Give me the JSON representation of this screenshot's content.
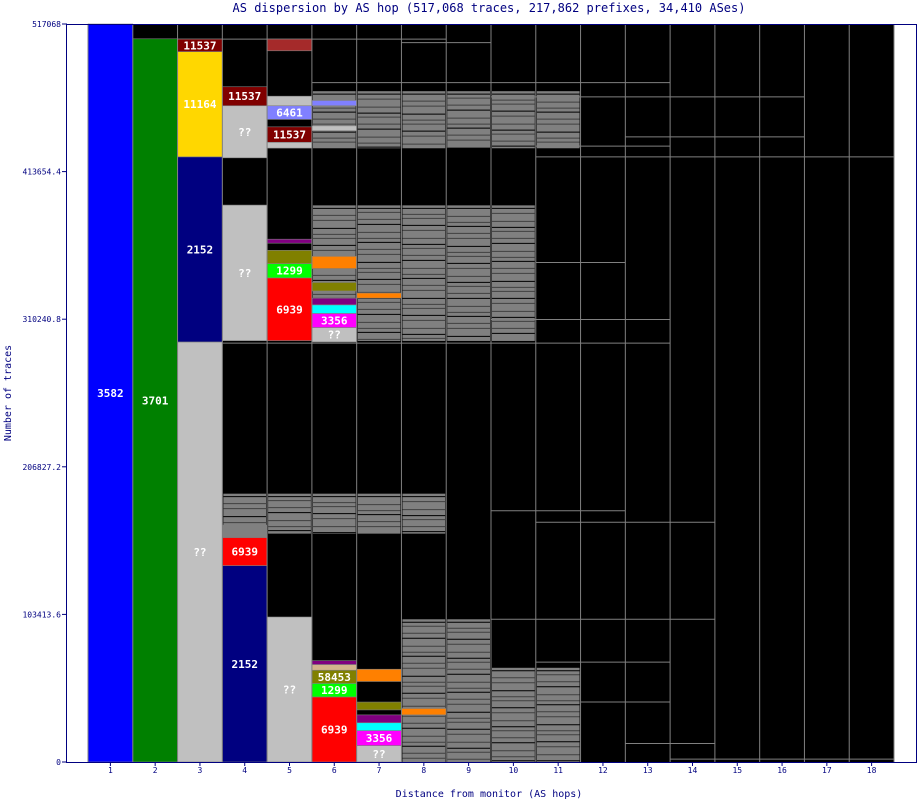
{
  "chart_data": {
    "type": "bar",
    "title": "AS dispersion by AS hop (517,068 traces, 217,862 prefixes, 34,410 ASes)",
    "xlabel": "Distance from monitor (AS hops)",
    "ylabel": "Number of traces",
    "ylim": [
      0,
      517068
    ],
    "yticks": [
      "0",
      "103413.6",
      "206827.2",
      "310240.8",
      "413654.4",
      "517068"
    ],
    "ytick_values": [
      0,
      103413.6,
      206827.2,
      310240.8,
      413654.4,
      517068
    ],
    "categories": [
      "1",
      "2",
      "3",
      "4",
      "5",
      "6",
      "7",
      "8",
      "9",
      "10",
      "11",
      "12",
      "13",
      "14",
      "15",
      "16",
      "17",
      "18"
    ],
    "background_color": "#000000",
    "segments": [
      {
        "hop": 1,
        "from": 0,
        "to": 517068,
        "color": "#0000ff",
        "label": "3582"
      },
      {
        "hop": 2,
        "from": 0,
        "to": 506700,
        "color": "#008000",
        "label": "3701"
      },
      {
        "hop": 3,
        "from": 0,
        "to": 294300,
        "color": "#c0c0c0",
        "label": "??"
      },
      {
        "hop": 3,
        "from": 294300,
        "to": 424000,
        "color": "#000080",
        "label": "2152"
      },
      {
        "hop": 3,
        "from": 424000,
        "to": 497700,
        "color": "#ffd700",
        "label": "11164"
      },
      {
        "hop": 3,
        "from": 497700,
        "to": 506500,
        "color": "#800000",
        "label": "11537"
      },
      {
        "hop": 4,
        "from": 0,
        "to": 137600,
        "color": "#000080",
        "label": "2152"
      },
      {
        "hop": 4,
        "from": 137600,
        "to": 157300,
        "color": "#ff0000",
        "label": "6939"
      },
      {
        "hop": 4,
        "from": 157300,
        "to": 166000,
        "color": "#808080",
        "label": ""
      },
      {
        "hop": 4,
        "from": 295200,
        "to": 390200,
        "color": "#c0c0c0",
        "label": "??"
      },
      {
        "hop": 4,
        "from": 423300,
        "to": 459800,
        "color": "#c0c0c0",
        "label": "??"
      },
      {
        "hop": 4,
        "from": 459800,
        "to": 473100,
        "color": "#800000",
        "label": "11537"
      },
      {
        "hop": 5,
        "from": 0,
        "to": 101600,
        "color": "#c0c0c0",
        "label": "??"
      },
      {
        "hop": 5,
        "from": 295200,
        "to": 339200,
        "color": "#ff0000",
        "label": "6939"
      },
      {
        "hop": 5,
        "from": 339200,
        "to": 349200,
        "color": "#00ff00",
        "label": "1299"
      },
      {
        "hop": 5,
        "from": 349200,
        "to": 358500,
        "color": "#808000",
        "label": ""
      },
      {
        "hop": 5,
        "from": 363500,
        "to": 366300,
        "color": "#800080",
        "label": ""
      },
      {
        "hop": 5,
        "from": 430100,
        "to": 434200,
        "color": "#c0c0c0",
        "label": ""
      },
      {
        "hop": 5,
        "from": 434200,
        "to": 445000,
        "color": "#800000",
        "label": "11537"
      },
      {
        "hop": 5,
        "from": 450200,
        "to": 459800,
        "color": "#8080ff",
        "label": "6461"
      },
      {
        "hop": 5,
        "from": 459800,
        "to": 466500,
        "color": "#c0c0c0",
        "label": ""
      },
      {
        "hop": 5,
        "from": 498300,
        "to": 506500,
        "color": "#a52a2a",
        "label": ""
      },
      {
        "hop": 6,
        "from": 0,
        "to": 45600,
        "color": "#ff0000",
        "label": "6939"
      },
      {
        "hop": 6,
        "from": 45600,
        "to": 55100,
        "color": "#00ff00",
        "label": "1299"
      },
      {
        "hop": 6,
        "from": 55100,
        "to": 64300,
        "color": "#808000",
        "label": "58453"
      },
      {
        "hop": 6,
        "from": 64300,
        "to": 68300,
        "color": "#d2b48c",
        "label": ""
      },
      {
        "hop": 6,
        "from": 68300,
        "to": 71000,
        "color": "#800080",
        "label": ""
      },
      {
        "hop": 6,
        "from": 294300,
        "to": 304400,
        "color": "#c0c0c0",
        "label": "??"
      },
      {
        "hop": 6,
        "from": 304400,
        "to": 314300,
        "color": "#ff00ff",
        "label": "3356"
      },
      {
        "hop": 6,
        "from": 314300,
        "to": 320300,
        "color": "#00ffff",
        "label": ""
      },
      {
        "hop": 6,
        "from": 320300,
        "to": 325000,
        "color": "#800080",
        "label": ""
      },
      {
        "hop": 6,
        "from": 330000,
        "to": 336000,
        "color": "#808000",
        "label": ""
      },
      {
        "hop": 6,
        "from": 345700,
        "to": 354300,
        "color": "#ff8000",
        "label": ""
      },
      {
        "hop": 6,
        "from": 442300,
        "to": 445700,
        "color": "#c0c0c0",
        "label": ""
      },
      {
        "hop": 6,
        "from": 459800,
        "to": 463500,
        "color": "#8080ff",
        "label": ""
      },
      {
        "hop": 7,
        "from": 0,
        "to": 11500,
        "color": "#c0c0c0",
        "label": "??"
      },
      {
        "hop": 7,
        "from": 11500,
        "to": 22000,
        "color": "#ff00ff",
        "label": "3356"
      },
      {
        "hop": 7,
        "from": 22000,
        "to": 27500,
        "color": "#00ffff",
        "label": ""
      },
      {
        "hop": 7,
        "from": 27500,
        "to": 33000,
        "color": "#800080",
        "label": ""
      },
      {
        "hop": 7,
        "from": 36500,
        "to": 42000,
        "color": "#808000",
        "label": ""
      },
      {
        "hop": 7,
        "from": 56400,
        "to": 65000,
        "color": "#ff8000",
        "label": ""
      },
      {
        "hop": 7,
        "from": 325000,
        "to": 328600,
        "color": "#ff8000",
        "label": ""
      },
      {
        "hop": 8,
        "from": 33000,
        "to": 37500,
        "color": "#ff8000",
        "label": ""
      }
    ],
    "gray_bands": [
      {
        "from": 0,
        "to": 66000,
        "hops": [
          8,
          9,
          10,
          11
        ]
      },
      {
        "from": 0,
        "to": 100000,
        "hops": [
          8,
          9
        ]
      },
      {
        "from": 160000,
        "to": 188000,
        "hops": [
          4,
          5,
          6,
          7,
          8
        ]
      },
      {
        "from": 295000,
        "to": 390000,
        "hops": [
          6,
          7,
          8,
          9,
          10
        ]
      },
      {
        "from": 430000,
        "to": 470000,
        "hops": [
          6,
          7,
          8,
          9,
          10,
          11
        ]
      }
    ],
    "gray_lines": [
      {
        "y": 506500,
        "hops": [
          3,
          4,
          5,
          6,
          7,
          8
        ]
      },
      {
        "y": 504000,
        "hops": [
          8,
          9
        ]
      },
      {
        "y": 476000,
        "hops": [
          6,
          7,
          8,
          9,
          10,
          11,
          12,
          13
        ]
      },
      {
        "y": 466000,
        "hops": [
          10,
          11,
          12,
          13,
          14,
          15,
          16
        ]
      },
      {
        "y": 424000,
        "hops": [
          11,
          12,
          13,
          14,
          15,
          16,
          17,
          18
        ]
      },
      {
        "y": 431500,
        "hops": [
          11,
          12,
          13
        ]
      },
      {
        "y": 438000,
        "hops": [
          13,
          14,
          15,
          16
        ]
      },
      {
        "y": 350000,
        "hops": [
          11,
          12
        ]
      },
      {
        "y": 310000,
        "hops": [
          10,
          11,
          12,
          13
        ]
      },
      {
        "y": 293500,
        "hops": [
          3,
          4,
          5,
          6,
          7,
          8,
          9,
          10,
          11,
          12,
          13
        ]
      },
      {
        "y": 176000,
        "hops": [
          10,
          11,
          12
        ]
      },
      {
        "y": 168000,
        "hops": [
          11,
          12,
          13,
          14
        ]
      },
      {
        "y": 100000,
        "hops": [
          10,
          11,
          12,
          13,
          14
        ]
      },
      {
        "y": 70000,
        "hops": [
          11,
          12,
          13
        ]
      },
      {
        "y": 42000,
        "hops": [
          12,
          13
        ]
      },
      {
        "y": 13000,
        "hops": [
          13,
          14
        ]
      },
      {
        "y": 2000,
        "hops": [
          14,
          15,
          16,
          17,
          18
        ]
      }
    ],
    "colors": {
      "axis": "#000080",
      "column_border": "#808080",
      "gray_band": "#808080",
      "dark_band": "#404040"
    }
  }
}
